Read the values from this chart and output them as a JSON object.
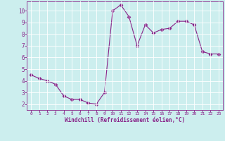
{
  "x": [
    0,
    1,
    2,
    3,
    4,
    5,
    6,
    7,
    8,
    9,
    10,
    11,
    12,
    13,
    14,
    15,
    16,
    17,
    18,
    19,
    20,
    21,
    22,
    23
  ],
  "y": [
    4.5,
    4.2,
    4.0,
    3.7,
    2.7,
    2.4,
    2.4,
    2.1,
    2.0,
    3.0,
    10.0,
    10.5,
    9.5,
    7.0,
    8.8,
    8.1,
    8.4,
    8.5,
    9.1,
    9.1,
    8.8,
    6.5,
    6.3,
    6.3
  ],
  "line_color": "#882288",
  "marker": "D",
  "marker_size": 2.5,
  "bg_color": "#cceeee",
  "grid_color": "#aadddd",
  "xlabel": "Windchill (Refroidissement éolien,°C)",
  "xlabel_color": "#882288",
  "tick_color": "#882288",
  "spine_color": "#882288",
  "xlim": [
    -0.5,
    23.5
  ],
  "ylim": [
    1.5,
    10.8
  ],
  "yticks": [
    2,
    3,
    4,
    5,
    6,
    7,
    8,
    9,
    10
  ],
  "xticks": [
    0,
    1,
    2,
    3,
    4,
    5,
    6,
    7,
    8,
    9,
    10,
    11,
    12,
    13,
    14,
    15,
    16,
    17,
    18,
    19,
    20,
    21,
    22,
    23
  ],
  "figsize": [
    3.2,
    2.0
  ],
  "dpi": 100
}
